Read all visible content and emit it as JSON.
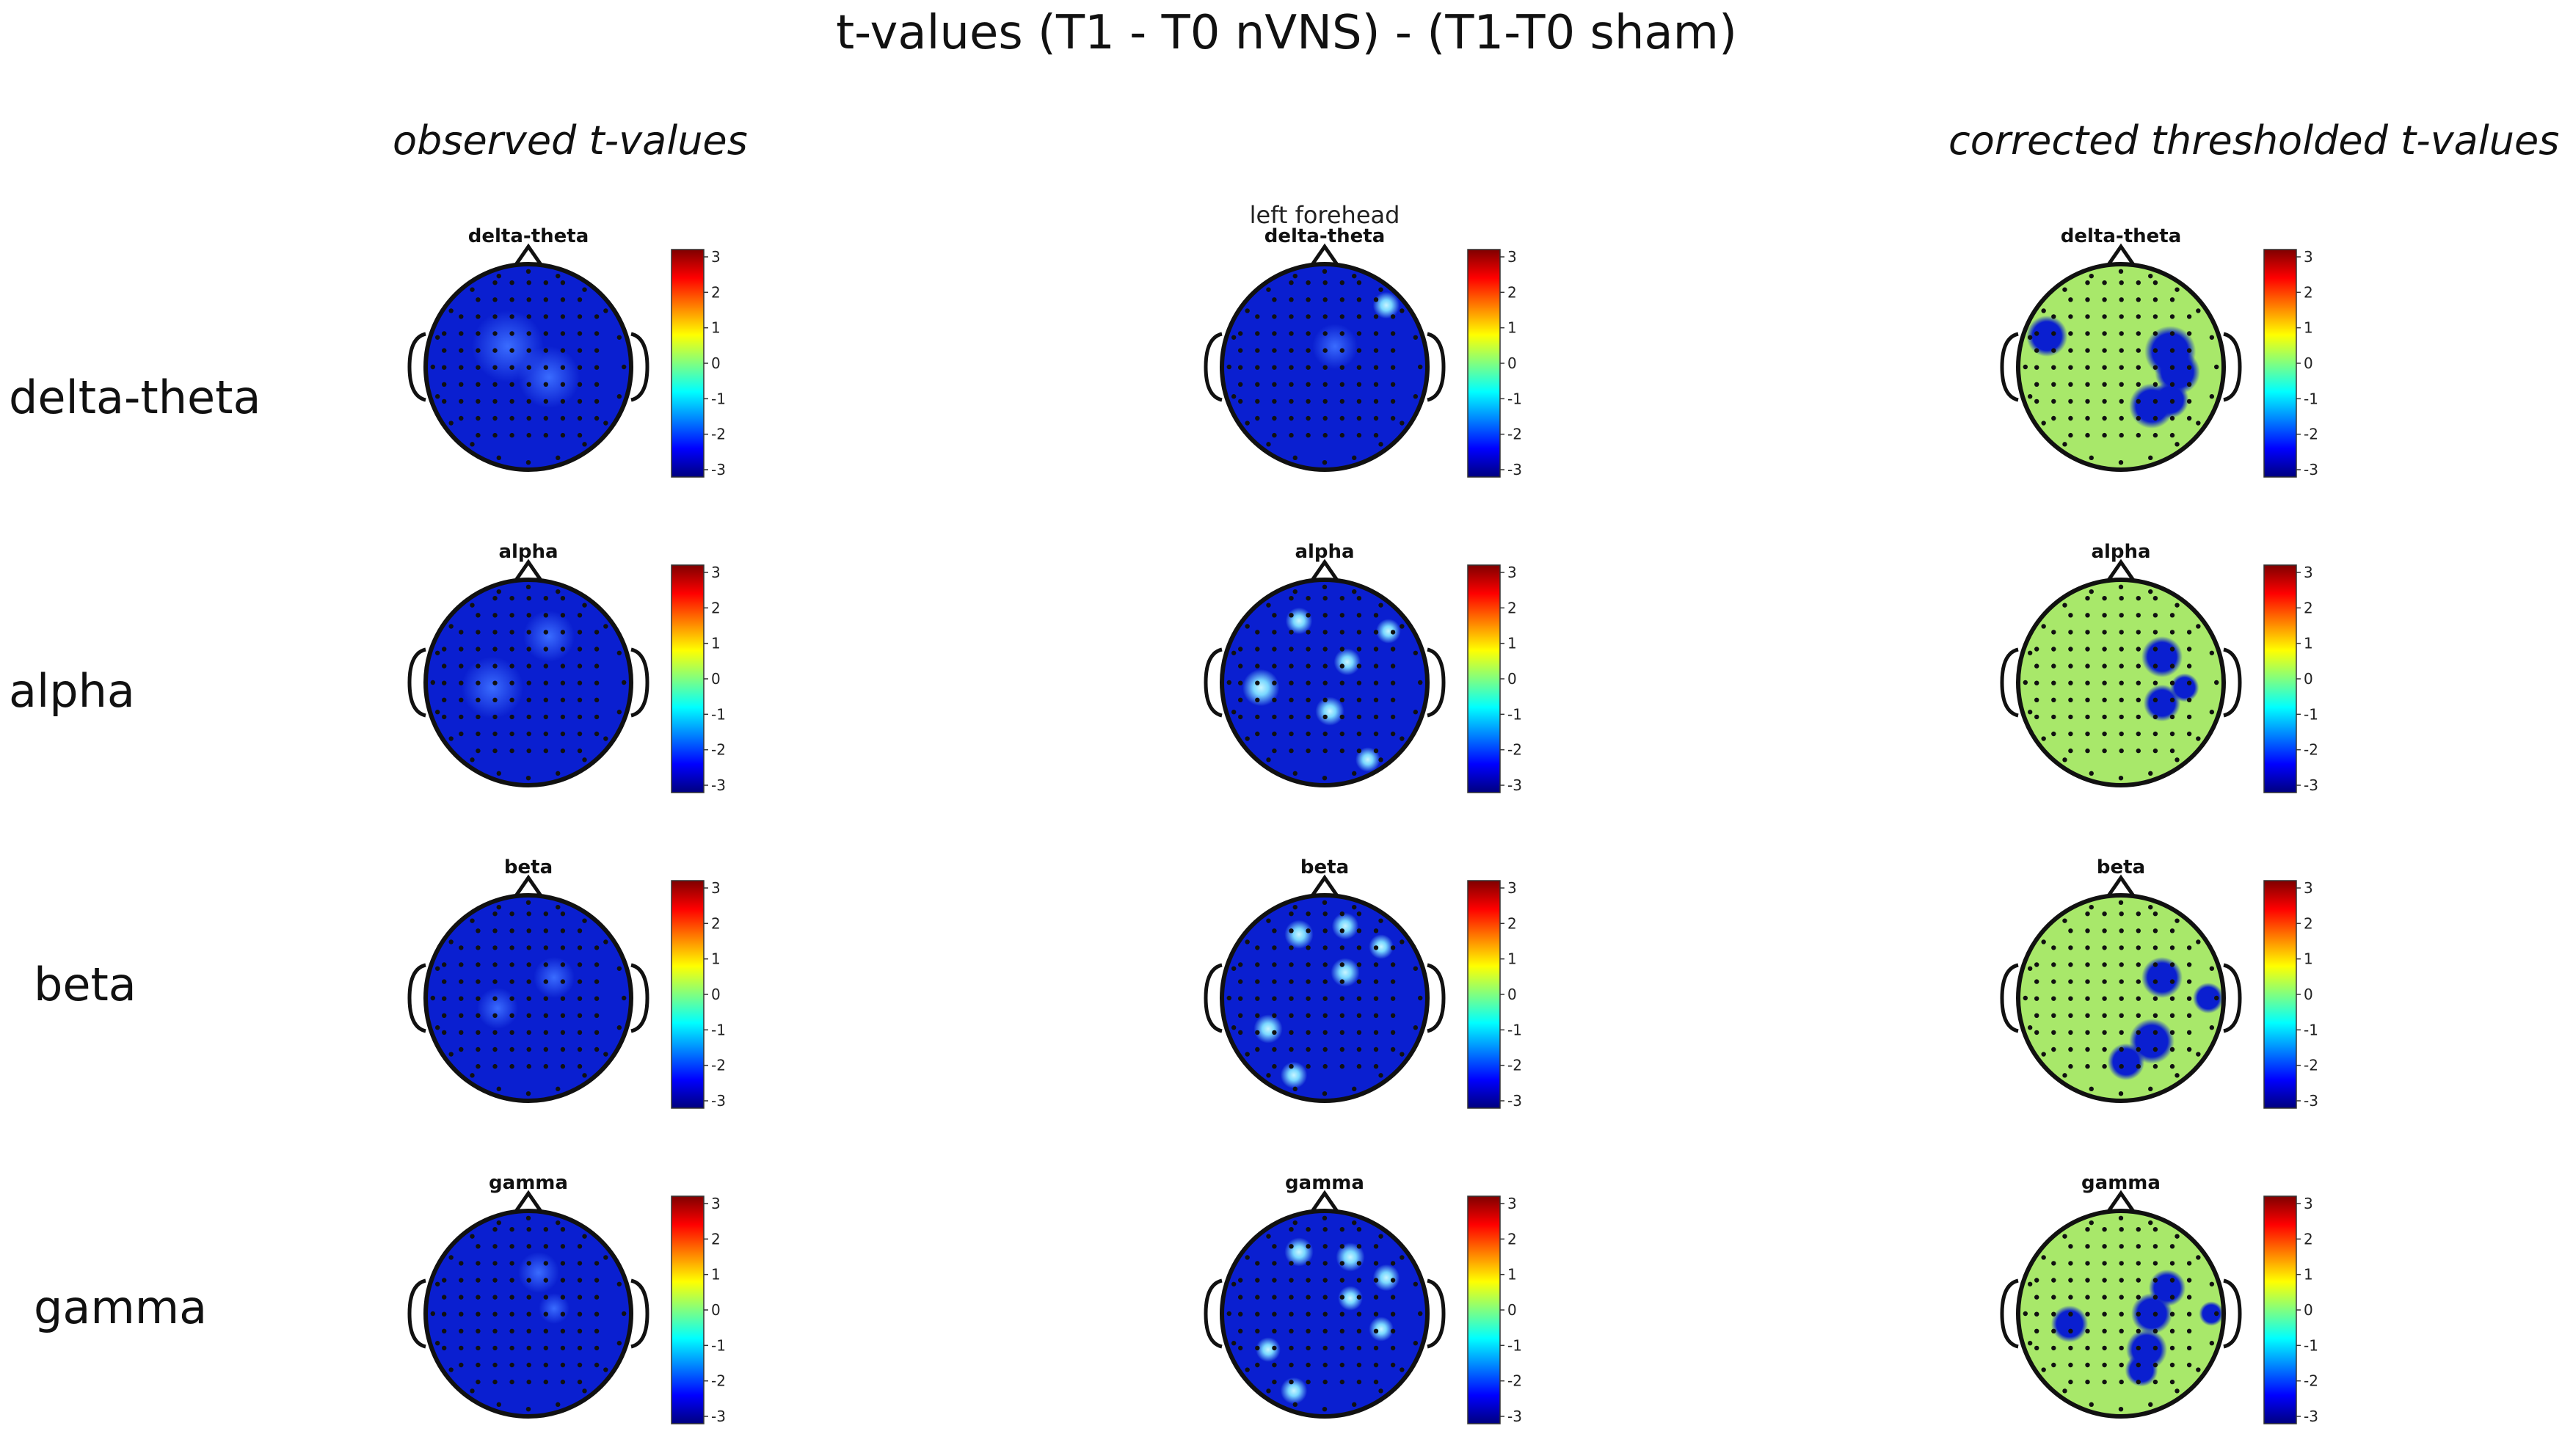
{
  "title": "t-values (T1 - T0 nVNS) - (T1-T0 sham)",
  "column_headers": {
    "observed": "observed t-values",
    "corrected": "corrected thresholded  t-values"
  },
  "middle_annotation": "left forehead",
  "row_labels": [
    "delta-theta",
    "alpha",
    "beta",
    "gamma"
  ],
  "panel_titles": [
    "delta-theta",
    "alpha",
    "beta",
    "gamma"
  ],
  "colorbar": {
    "ticks": [
      "3",
      "2",
      "1",
      "0",
      "-1",
      "-2",
      "-3"
    ],
    "colors_top_to_bottom": [
      "#7f0000",
      "#ff0000",
      "#ff8000",
      "#ffff00",
      "#80ff80",
      "#00ffff",
      "#0080ff",
      "#0000ff",
      "#00007f"
    ]
  },
  "colors": {
    "observed_background": "#0a1fd0",
    "thresholded_background": "#a8e86a",
    "significant_blob": "#0a1fd0",
    "highlight_blob": "#7ad8ff",
    "head_outline": "#111111",
    "electrode": "#111111"
  }
}
